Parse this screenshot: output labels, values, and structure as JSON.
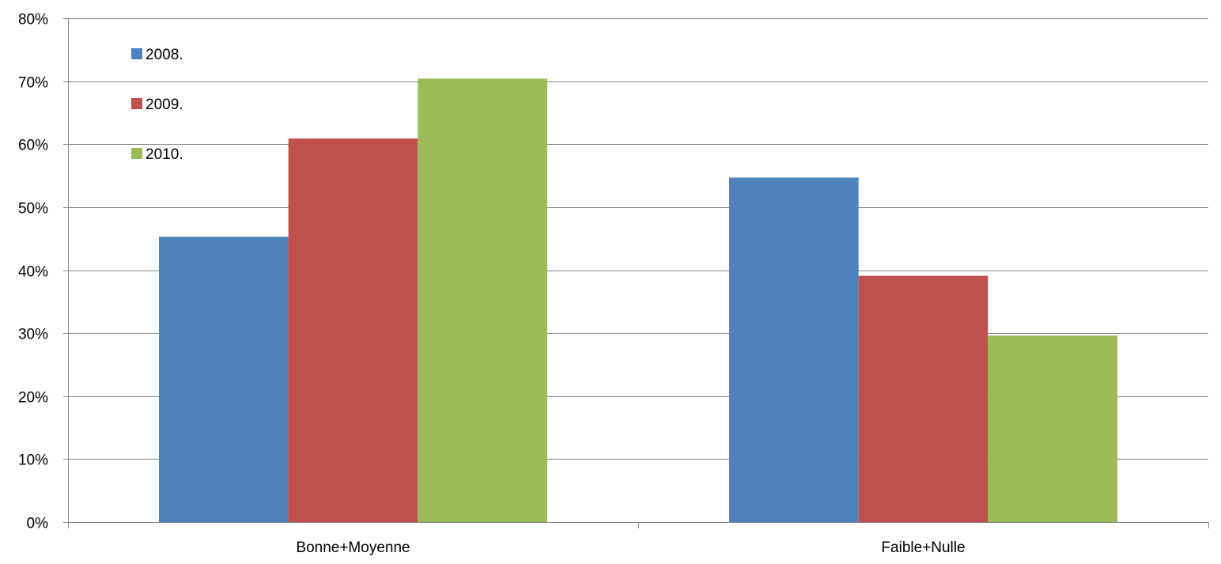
{
  "chart_data": {
    "type": "bar",
    "title": "",
    "xlabel": "",
    "ylabel": "",
    "categories": [
      "Bonne+Moyenne",
      "Faible+Nulle"
    ],
    "series": [
      {
        "name": "2008.",
        "values": [
          45.3,
          54.7
        ],
        "color": "#4F81BD"
      },
      {
        "name": "2009.",
        "values": [
          60.9,
          39.1
        ],
        "color": "#C0504D"
      },
      {
        "name": "2010.",
        "values": [
          70.4,
          29.6
        ],
        "color": "#9BBB59"
      }
    ],
    "ylim": [
      0,
      80
    ],
    "y_ticks": [
      0,
      10,
      20,
      30,
      40,
      50,
      60,
      70,
      80
    ],
    "y_tick_labels": [
      "0%",
      "10%",
      "20%",
      "30%",
      "40%",
      "50%",
      "60%",
      "70%",
      "80%"
    ],
    "grid": true,
    "legend_position": "top-left"
  }
}
